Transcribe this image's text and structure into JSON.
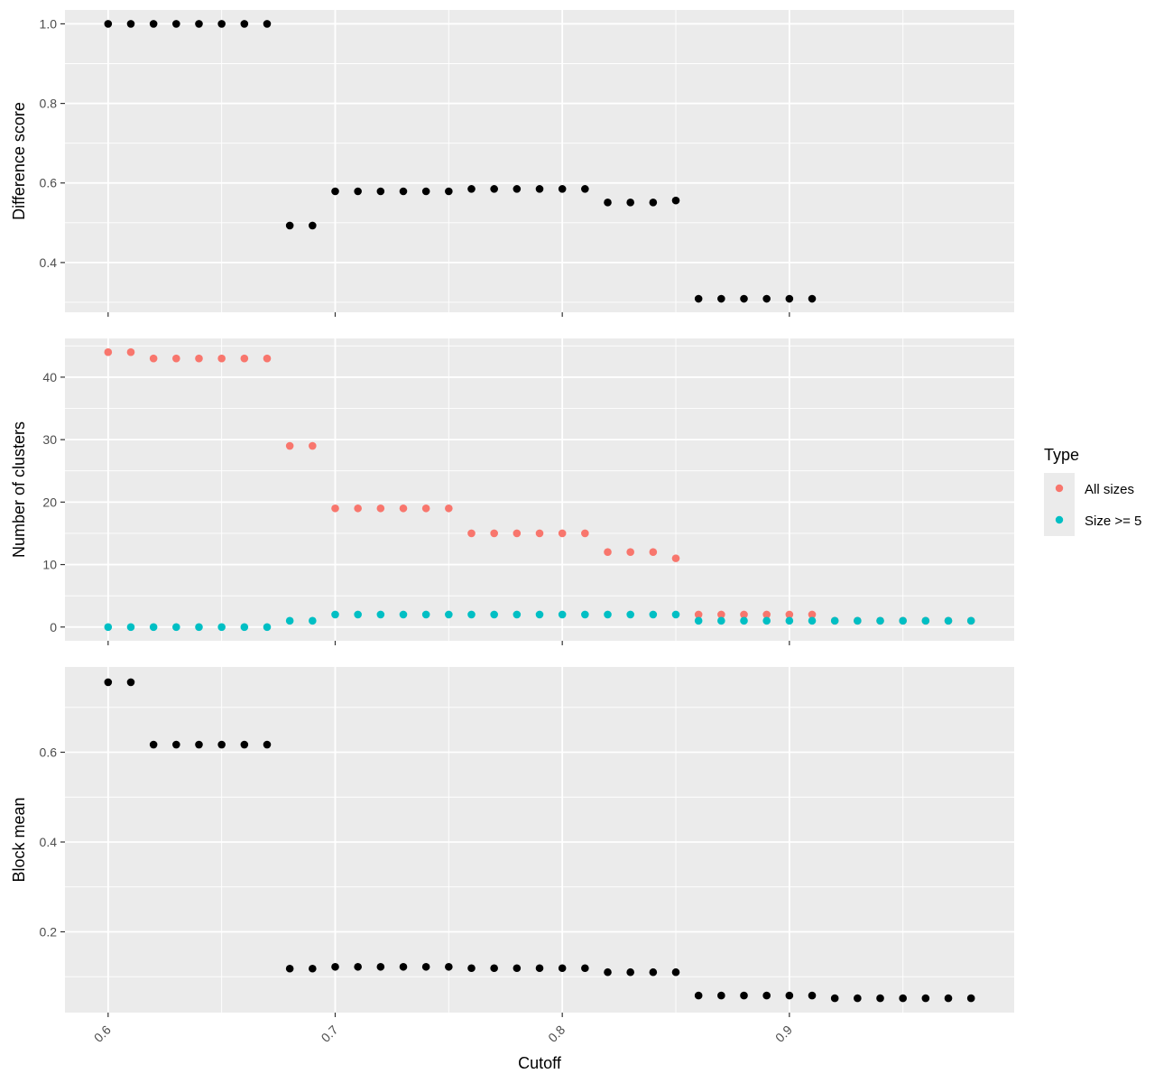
{
  "chart_data": [
    {
      "type": "scatter",
      "ylabel": "Difference score",
      "xlim": [
        0.581,
        0.999
      ],
      "ylim": [
        0.275,
        1.035
      ],
      "yticks": [
        0.4,
        0.6,
        0.8,
        1.0
      ],
      "yticklabels": [
        "0.4",
        "0.6",
        "0.8",
        "1.0"
      ],
      "grid": true,
      "series": [
        {
          "color": "#000000",
          "x": [
            0.6,
            0.61,
            0.62,
            0.63,
            0.64,
            0.65,
            0.66,
            0.67,
            0.68,
            0.69,
            0.7,
            0.71,
            0.72,
            0.73,
            0.74,
            0.75,
            0.76,
            0.77,
            0.78,
            0.79,
            0.8,
            0.81,
            0.82,
            0.83,
            0.84,
            0.85,
            0.86,
            0.87,
            0.88,
            0.89,
            0.9,
            0.91
          ],
          "y": [
            1.0,
            1.0,
            1.0,
            1.0,
            1.0,
            1.0,
            1.0,
            1.0,
            0.493,
            0.493,
            0.579,
            0.579,
            0.579,
            0.579,
            0.579,
            0.579,
            0.585,
            0.585,
            0.585,
            0.585,
            0.585,
            0.585,
            0.551,
            0.551,
            0.551,
            0.556,
            0.309,
            0.309,
            0.309,
            0.309,
            0.309,
            0.309
          ]
        }
      ]
    },
    {
      "type": "scatter",
      "ylabel": "Number of clusters",
      "xlim": [
        0.581,
        0.999
      ],
      "ylim": [
        -2.2,
        46.2
      ],
      "yticks": [
        0,
        10,
        20,
        30,
        40
      ],
      "yticklabels": [
        "0",
        "10",
        "20",
        "30",
        "40"
      ],
      "grid": true,
      "legend": {
        "title": "Type",
        "position": "right"
      },
      "series": [
        {
          "name": "All sizes",
          "color": "#F8766D",
          "x": [
            0.6,
            0.61,
            0.62,
            0.63,
            0.64,
            0.65,
            0.66,
            0.67,
            0.68,
            0.69,
            0.7,
            0.71,
            0.72,
            0.73,
            0.74,
            0.75,
            0.76,
            0.77,
            0.78,
            0.79,
            0.8,
            0.81,
            0.82,
            0.83,
            0.84,
            0.85,
            0.86,
            0.87,
            0.88,
            0.89,
            0.9,
            0.91,
            0.92,
            0.93,
            0.94,
            0.95,
            0.96,
            0.97,
            0.98
          ],
          "y": [
            44,
            44,
            43,
            43,
            43,
            43,
            43,
            43,
            29,
            29,
            19,
            19,
            19,
            19,
            19,
            19,
            15,
            15,
            15,
            15,
            15,
            15,
            12,
            12,
            12,
            11,
            2,
            2,
            2,
            2,
            2,
            2,
            1,
            1,
            1,
            1,
            1,
            1,
            1
          ]
        },
        {
          "name": "Size >= 5",
          "color": "#00BFC4",
          "x": [
            0.6,
            0.61,
            0.62,
            0.63,
            0.64,
            0.65,
            0.66,
            0.67,
            0.68,
            0.69,
            0.7,
            0.71,
            0.72,
            0.73,
            0.74,
            0.75,
            0.76,
            0.77,
            0.78,
            0.79,
            0.8,
            0.81,
            0.82,
            0.83,
            0.84,
            0.85,
            0.86,
            0.87,
            0.88,
            0.89,
            0.9,
            0.91,
            0.92,
            0.93,
            0.94,
            0.95,
            0.96,
            0.97,
            0.98
          ],
          "y": [
            0,
            0,
            0,
            0,
            0,
            0,
            0,
            0,
            1,
            1,
            2,
            2,
            2,
            2,
            2,
            2,
            2,
            2,
            2,
            2,
            2,
            2,
            2,
            2,
            2,
            2,
            1,
            1,
            1,
            1,
            1,
            1,
            1,
            1,
            1,
            1,
            1,
            1,
            1
          ]
        }
      ]
    },
    {
      "type": "scatter",
      "ylabel": "Block mean",
      "xlabel": "Cutoff",
      "xlim": [
        0.581,
        0.999
      ],
      "ylim": [
        0.02,
        0.79
      ],
      "xticks": [
        0.6,
        0.7,
        0.8,
        0.9
      ],
      "xticklabels": [
        "0.6",
        "0.7",
        "0.8",
        "0.9"
      ],
      "yticks": [
        0.2,
        0.4,
        0.6
      ],
      "yticklabels": [
        "0.2",
        "0.4",
        "0.6"
      ],
      "grid": true,
      "series": [
        {
          "color": "#000000",
          "x": [
            0.6,
            0.61,
            0.62,
            0.63,
            0.64,
            0.65,
            0.66,
            0.67,
            0.68,
            0.69,
            0.7,
            0.71,
            0.72,
            0.73,
            0.74,
            0.75,
            0.76,
            0.77,
            0.78,
            0.79,
            0.8,
            0.81,
            0.82,
            0.83,
            0.84,
            0.85,
            0.86,
            0.87,
            0.88,
            0.89,
            0.9,
            0.91,
            0.92,
            0.93,
            0.94,
            0.95,
            0.96,
            0.97,
            0.98
          ],
          "y": [
            0.756,
            0.756,
            0.617,
            0.617,
            0.617,
            0.617,
            0.617,
            0.617,
            0.118,
            0.118,
            0.122,
            0.122,
            0.122,
            0.122,
            0.122,
            0.122,
            0.119,
            0.119,
            0.119,
            0.119,
            0.119,
            0.119,
            0.11,
            0.11,
            0.11,
            0.11,
            0.058,
            0.058,
            0.058,
            0.058,
            0.058,
            0.058,
            0.052,
            0.052,
            0.052,
            0.052,
            0.052,
            0.052,
            0.052
          ]
        }
      ]
    }
  ]
}
